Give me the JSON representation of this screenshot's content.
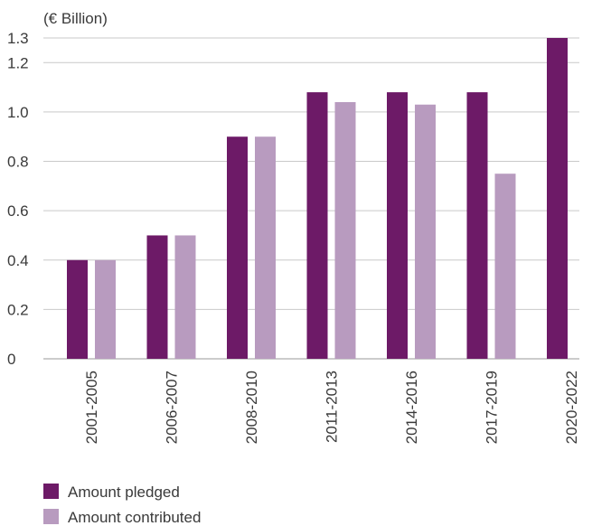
{
  "chart_data": {
    "type": "bar",
    "ylabel": "(€ Billion)",
    "categories": [
      "2001-2005",
      "2006-2007",
      "2008-2010",
      "2011-2013",
      "2014-2016",
      "2017-2019",
      "2020-2022"
    ],
    "series": [
      {
        "name": "Amount pledged",
        "color": "#6d1a67",
        "values": [
          0.4,
          0.5,
          0.9,
          1.08,
          1.08,
          1.08,
          1.3
        ]
      },
      {
        "name": "Amount contributed",
        "color": "#b89bbf",
        "values": [
          0.4,
          0.5,
          0.9,
          1.04,
          1.03,
          0.75,
          null
        ]
      }
    ],
    "yticks": [
      "0",
      "0.2",
      "0.4",
      "0.6",
      "0.8",
      "1.0",
      "1.2",
      "1.3"
    ],
    "ylim": [
      0,
      1.3
    ],
    "grid": true,
    "legend_position": "bottom-left"
  }
}
